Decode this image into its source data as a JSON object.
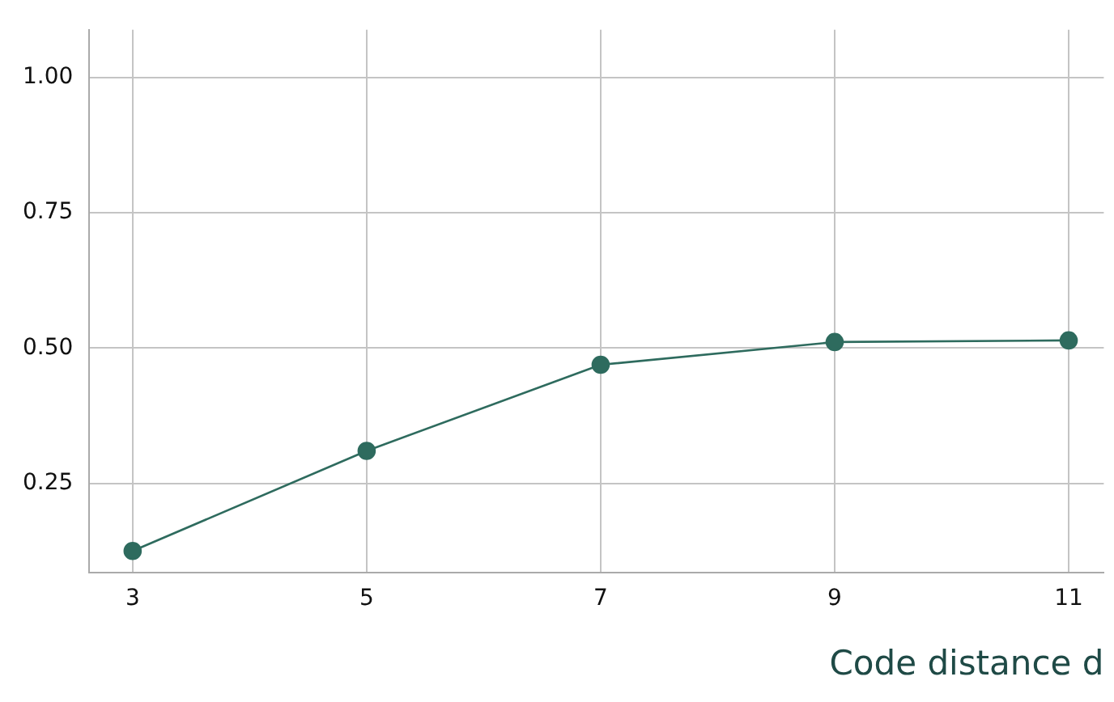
{
  "chart_data": {
    "type": "line",
    "xlabel": "Code distance d",
    "x": [
      3,
      5,
      7,
      9,
      11
    ],
    "series": [
      {
        "color": "#2e6b5e",
        "values": [
          0.125,
          0.31,
          0.469,
          0.511,
          0.514
        ]
      }
    ],
    "xlim": [
      2.63,
      11.3
    ],
    "xticks": [
      3,
      5,
      7,
      9,
      11
    ],
    "ylim": [
      0.085,
      1.088
    ],
    "yticks": [
      {
        "value": 0.25,
        "label": "0.25"
      },
      {
        "value": 0.5,
        "label": "0.50"
      },
      {
        "value": 0.75,
        "label": "0.75"
      },
      {
        "value": 1,
        "label": "1.00"
      }
    ],
    "grid": true,
    "legend": false,
    "marker": "circle",
    "line_style": "solid"
  }
}
